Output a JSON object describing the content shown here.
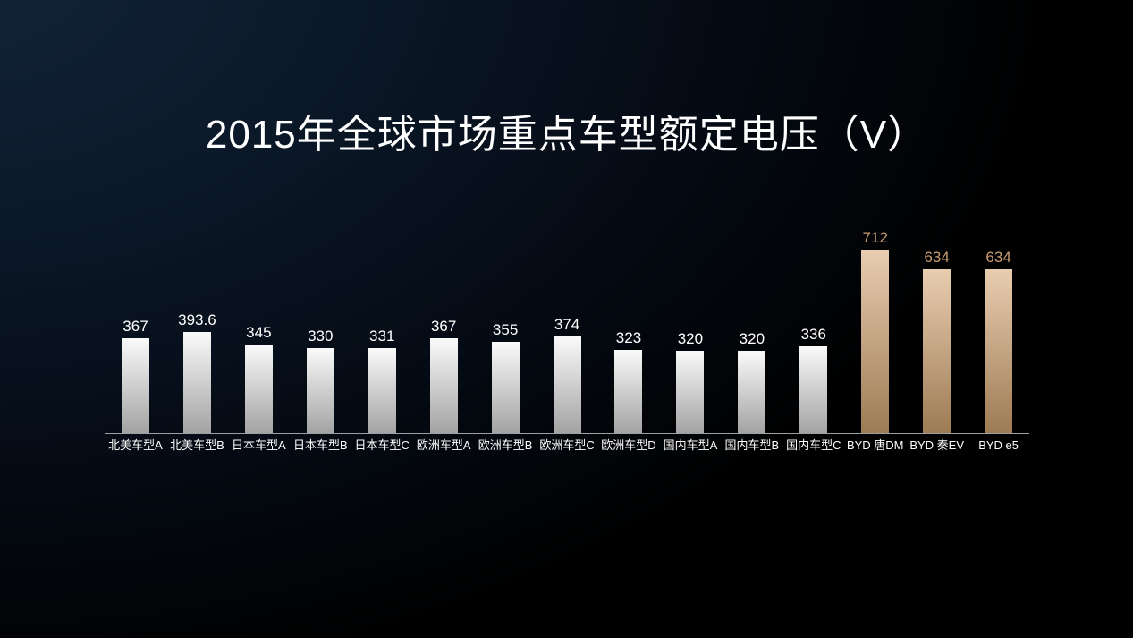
{
  "slide": {
    "title": "2015年全球市场重点车型额定电压（V）"
  },
  "chart_data": {
    "type": "bar",
    "title": "2015年全球市场重点车型额定电压（V）",
    "xlabel": "",
    "ylabel": "",
    "ylim": [
      0,
      712
    ],
    "grid": false,
    "legend": "none",
    "value_labels": true,
    "categories": [
      "北美车型A",
      "北美车型B",
      "日本车型A",
      "日本车型B",
      "日本车型C",
      "欧洲车型A",
      "欧洲车型B",
      "欧洲车型C",
      "欧洲车型D",
      "国内车型A",
      "国内车型B",
      "国内车型C",
      "BYD 唐DM",
      "BYD 秦EV",
      "BYD e5"
    ],
    "values": [
      367,
      393.6,
      345,
      330,
      331,
      367,
      355,
      374,
      323,
      320,
      320,
      336,
      712,
      634,
      634
    ],
    "bar_styles": [
      "silver",
      "silver",
      "silver",
      "silver",
      "silver",
      "silver",
      "silver",
      "silver",
      "silver",
      "silver",
      "silver",
      "silver",
      "gold",
      "gold",
      "gold"
    ]
  },
  "style": {
    "background_top_left": "#13253a",
    "background_base": "#000000",
    "title_color": "#ffffff",
    "silver_bar_top": "#fafafa",
    "silver_bar_bottom": "#a3a3a3",
    "gold_bar_top": "#e9cdb1",
    "gold_bar_bottom": "#9d7b54",
    "silver_value_label": "#ffffff",
    "gold_value_label": "#c89c72",
    "category_label_color": "#ffffff",
    "axis_line_color": "#9aa0a4"
  }
}
